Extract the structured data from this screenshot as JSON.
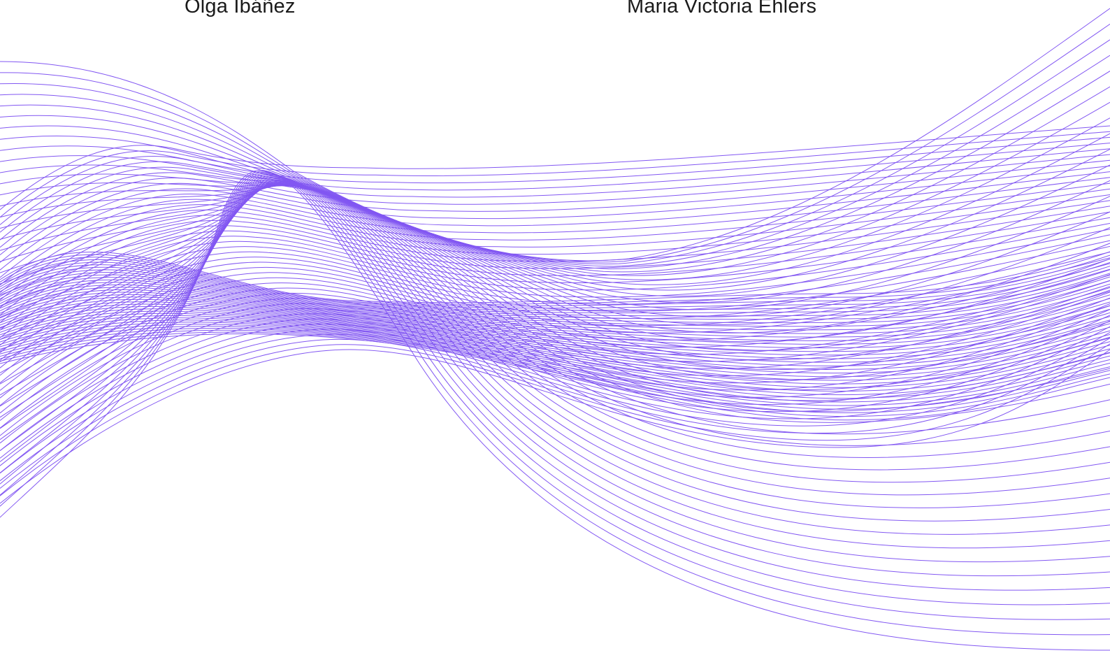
{
  "names": {
    "left": "Olga Ibáñez",
    "right": "Maria Victoria Ehlers"
  },
  "artwork": {
    "type": "wave-lines",
    "color": "#8257f2",
    "bands": [
      {
        "name": "band-a",
        "lines": 42
      },
      {
        "name": "band-b",
        "lines": 40
      },
      {
        "name": "band-c",
        "lines": 36
      }
    ]
  }
}
